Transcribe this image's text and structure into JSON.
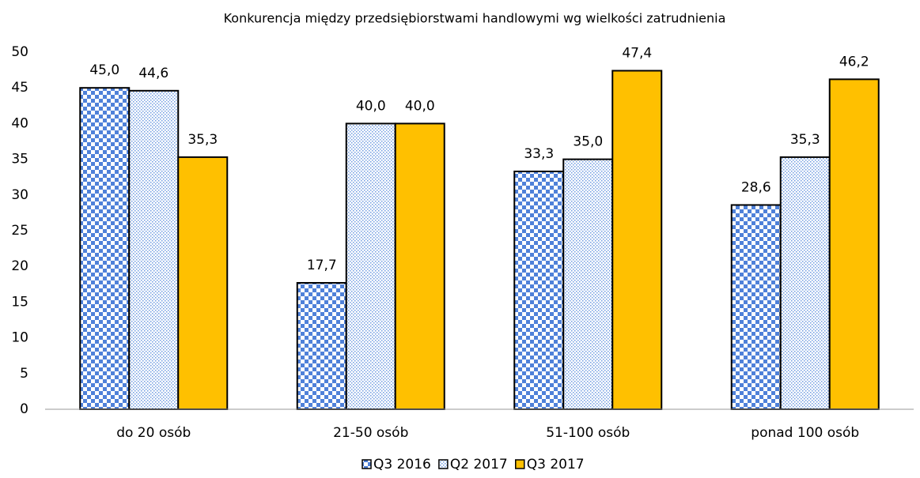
{
  "chart_data": {
    "type": "bar",
    "title": "Konkurencja między przedsiębiorstwami handlowymi wg wielkości zatrudnienia",
    "categories": [
      "do 20 osób",
      "21-50 osób",
      "51-100 osób",
      "ponad 100 osób"
    ],
    "series": [
      {
        "name": "Q3 2016",
        "color": "#4f81d9",
        "pattern": "checker",
        "values": [
          45.0,
          17.7,
          33.3,
          28.6
        ],
        "value_labels": [
          "45,0",
          "17,7",
          "33,3",
          "28,6"
        ]
      },
      {
        "name": "Q2 2017",
        "color": "#6f9be0",
        "pattern": "dots",
        "values": [
          44.6,
          40.0,
          35.0,
          35.3
        ],
        "value_labels": [
          "44,6",
          "40,0",
          "35,0",
          "35,3"
        ]
      },
      {
        "name": "Q3 2017",
        "color": "#ffc000",
        "pattern": "solid",
        "values": [
          35.3,
          40.0,
          47.4,
          46.2
        ],
        "value_labels": [
          "35,3",
          "40,0",
          "47,4",
          "46,2"
        ]
      }
    ],
    "ylim": [
      0,
      50
    ],
    "yticks": [
      0,
      5,
      10,
      15,
      20,
      25,
      30,
      35,
      40,
      45,
      50
    ],
    "grid": false,
    "legend": "bottom"
  }
}
